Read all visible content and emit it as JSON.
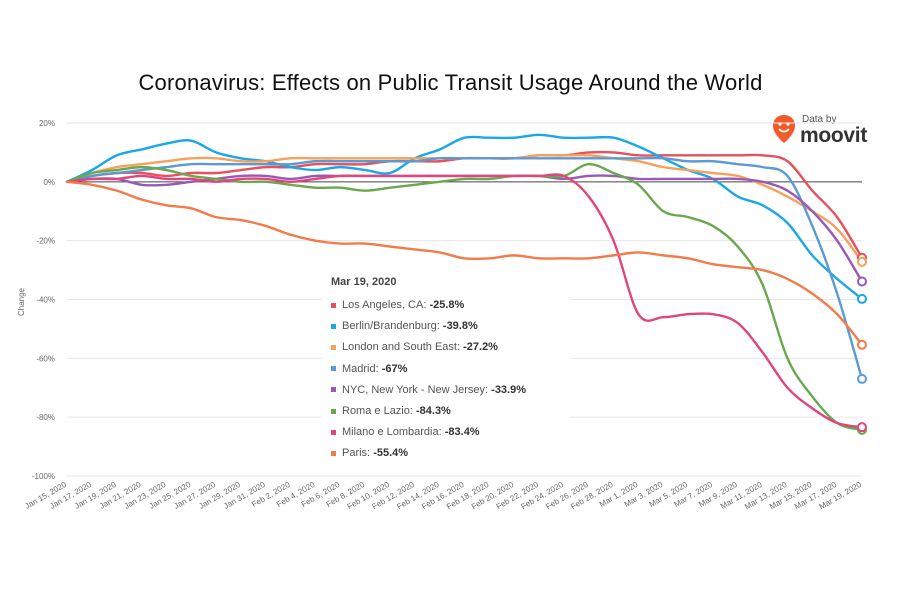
{
  "chart_data": {
    "type": "line",
    "title": "Coronavirus: Effects on Public Transit Usage Around the World",
    "ylabel": "Change",
    "ylim": [
      -100,
      20
    ],
    "yticks": [
      "20%",
      "0%",
      "-20%",
      "-40%",
      "-60%",
      "-80%",
      "-100%"
    ],
    "x": [
      "Jan 15, 2020",
      "Jan 17, 2020",
      "Jan 19, 2020",
      "Jan 21, 2020",
      "Jan 23, 2020",
      "Jan 25, 2020",
      "Jan 27, 2020",
      "Jan 29, 2020",
      "Jan 31, 2020",
      "Feb 2, 2020",
      "Feb 4, 2020",
      "Feb 6, 2020",
      "Feb 8, 2020",
      "Feb 10, 2020",
      "Feb 12, 2020",
      "Feb 14, 2020",
      "Feb 16, 2020",
      "Feb 18, 2020",
      "Feb 20, 2020",
      "Feb 22, 2020",
      "Feb 24, 2020",
      "Feb 26, 2020",
      "Feb 28, 2020",
      "Mar 1, 2020",
      "Mar 3, 2020",
      "Mar 5, 2020",
      "Mar 7, 2020",
      "Mar 9, 2020",
      "Mar 11, 2020",
      "Mar 13, 2020",
      "Mar 15, 2020",
      "Mar 17, 2020",
      "Mar 19, 2020"
    ],
    "grid": true,
    "series": [
      {
        "name": "Los Angeles, CA",
        "color": "#e8505b",
        "values": [
          0,
          2,
          3,
          3,
          2,
          3,
          3,
          4,
          5,
          5,
          6,
          6,
          6,
          7,
          7,
          7,
          8,
          8,
          8,
          9,
          9,
          10,
          10,
          9,
          9,
          9,
          9,
          9,
          9,
          7,
          -3,
          -12,
          -25.8
        ]
      },
      {
        "name": "Berlin/Brandenburg",
        "color": "#1aa7e8",
        "values": [
          0,
          4,
          9,
          11,
          13,
          14,
          10,
          8,
          7,
          5,
          4,
          5,
          4,
          3,
          8,
          11,
          15,
          15,
          15,
          16,
          15,
          15,
          15,
          12,
          8,
          4,
          1,
          -5,
          -8,
          -14,
          -25,
          -33,
          -39.8
        ]
      },
      {
        "name": "London and South East",
        "color": "#f6a05a",
        "values": [
          0,
          3,
          5,
          6,
          7,
          8,
          8,
          7,
          7,
          8,
          8,
          8,
          8,
          8,
          8,
          8,
          8,
          8,
          8,
          9,
          9,
          9,
          8,
          7,
          5,
          4,
          3,
          2,
          -1,
          -5,
          -10,
          -16,
          -27.2
        ]
      },
      {
        "name": "Madrid",
        "color": "#5b9bd5",
        "values": [
          0,
          2,
          3,
          4,
          5,
          6,
          6,
          6,
          6,
          6,
          7,
          7,
          7,
          7,
          7,
          8,
          8,
          8,
          8,
          8,
          8,
          8,
          8,
          8,
          8,
          7,
          7,
          6,
          5,
          2,
          -15,
          -38,
          -67
        ]
      },
      {
        "name": "NYC, New York - New Jersey",
        "color": "#9b59b6",
        "values": [
          0,
          1,
          1,
          -1,
          -1,
          0,
          1,
          2,
          2,
          1,
          2,
          2,
          2,
          2,
          2,
          2,
          2,
          2,
          2,
          2,
          1,
          2,
          2,
          1,
          1,
          1,
          1,
          1,
          0,
          -3,
          -10,
          -20,
          -33.9
        ]
      },
      {
        "name": "Roma e Lazio",
        "color": "#6aa84f",
        "values": [
          0,
          3,
          4,
          5,
          4,
          2,
          1,
          0,
          0,
          -1,
          -2,
          -2,
          -3,
          -2,
          -1,
          0,
          1,
          1,
          2,
          2,
          2,
          6,
          3,
          -1,
          -10,
          -12,
          -15,
          -22,
          -35,
          -60,
          -73,
          -82,
          -84.3
        ]
      },
      {
        "name": "Milano e Lombardia",
        "color": "#e0457b",
        "values": [
          0,
          1,
          1,
          2,
          1,
          1,
          0,
          1,
          1,
          0,
          1,
          2,
          2,
          2,
          2,
          2,
          2,
          2,
          2,
          2,
          2,
          -5,
          -20,
          -45,
          -46,
          -45,
          -45,
          -48,
          -58,
          -70,
          -77,
          -82,
          -83.4
        ]
      },
      {
        "name": "Paris",
        "color": "#f47a4a",
        "values": [
          0,
          -1,
          -3,
          -6,
          -8,
          -9,
          -12,
          -13,
          -15,
          -18,
          -20,
          -21,
          -21,
          -22,
          -23,
          -24,
          -26,
          -26,
          -25,
          -26,
          -26,
          -26,
          -25,
          -24,
          -25,
          -26,
          -28,
          -29,
          -30,
          -33,
          -38,
          -45,
          -55.4
        ]
      }
    ]
  },
  "tooltip": {
    "date": "Mar 19, 2020",
    "rows": [
      {
        "label": "Los Angeles, CA: ",
        "value": "-25.8%",
        "color": "#e8505b"
      },
      {
        "label": "Berlin/Brandenburg: ",
        "value": "-39.8%",
        "color": "#1aa7e8"
      },
      {
        "label": "London and South East: ",
        "value": "-27.2%",
        "color": "#f6a05a"
      },
      {
        "label": "Madrid: ",
        "value": "-67%",
        "color": "#5b9bd5"
      },
      {
        "label": "NYC, New York - New Jersey: ",
        "value": "-33.9%",
        "color": "#9b59b6"
      },
      {
        "label": "Roma e Lazio: ",
        "value": "-84.3%",
        "color": "#6aa84f"
      },
      {
        "label": "Milano e Lombardia: ",
        "value": "-83.4%",
        "color": "#e0457b"
      },
      {
        "label": "Paris: ",
        "value": "-55.4%",
        "color": "#f47a4a"
      }
    ]
  },
  "brand": {
    "by": "Data by",
    "name": "moovit",
    "color": "#f15a29"
  }
}
